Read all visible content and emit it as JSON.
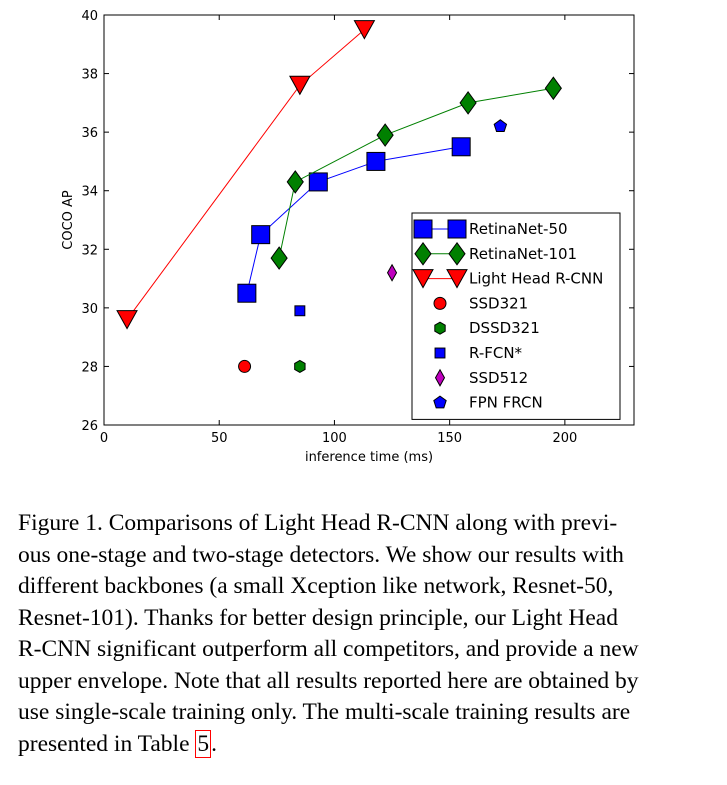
{
  "chart_data": {
    "type": "scatter",
    "title": "",
    "xlabel": "inference time (ms)",
    "ylabel": "COCO AP",
    "xlim": [
      0,
      230
    ],
    "ylim": [
      26,
      40
    ],
    "xticks": [
      0,
      50,
      100,
      150,
      200
    ],
    "yticks": [
      26,
      28,
      30,
      32,
      34,
      36,
      38,
      40
    ],
    "grid": false,
    "legend_placement": "lower-right",
    "series": [
      {
        "name": "RetinaNet-50",
        "marker": "square",
        "color": "#0000ff",
        "line": true,
        "size": "large",
        "points": [
          [
            62,
            30.5
          ],
          [
            68,
            32.5
          ],
          [
            93,
            34.3
          ],
          [
            118,
            35.0
          ],
          [
            155,
            35.5
          ]
        ]
      },
      {
        "name": "RetinaNet-101",
        "marker": "diamond",
        "color": "#008000",
        "line": true,
        "size": "large",
        "points": [
          [
            76,
            31.7
          ],
          [
            83,
            34.3
          ],
          [
            122,
            35.9
          ],
          [
            158,
            37.0
          ],
          [
            195,
            37.5
          ]
        ]
      },
      {
        "name": "Light Head R-CNN",
        "marker": "triangle-down",
        "color": "#ff0000",
        "line": true,
        "size": "large",
        "points": [
          [
            10,
            29.6
          ],
          [
            85,
            37.6
          ],
          [
            113,
            39.5
          ]
        ]
      },
      {
        "name": "SSD321",
        "marker": "circle",
        "color": "#ff0000",
        "line": false,
        "size": "small",
        "points": [
          [
            61,
            28.0
          ]
        ]
      },
      {
        "name": "DSSD321",
        "marker": "hexagon",
        "color": "#008000",
        "line": false,
        "size": "small",
        "points": [
          [
            85,
            28.0
          ]
        ]
      },
      {
        "name": "R-FCN*",
        "marker": "square",
        "color": "#0000ff",
        "line": false,
        "size": "small",
        "points": [
          [
            85,
            29.9
          ]
        ]
      },
      {
        "name": "SSD512",
        "marker": "thin-diamond",
        "color": "#bf00bf",
        "line": false,
        "size": "small",
        "points": [
          [
            125,
            31.2
          ]
        ]
      },
      {
        "name": "FPN FRCN",
        "marker": "pentagon",
        "color": "#0000ff",
        "line": false,
        "size": "small",
        "points": [
          [
            172,
            36.2
          ]
        ]
      }
    ]
  },
  "caption": {
    "lines": [
      "Figure 1. Comparisons of Light Head R-CNN along with previ-",
      "ous one-stage and two-stage detectors. We show our results with",
      "different backbones (a small Xception like network, Resnet-50,",
      "Resnet-101). Thanks for better design principle, our Light Head",
      "R-CNN significant outperform all competitors, and provide a new",
      "upper envelope. Note that all results reported here are obtained by",
      "use single-scale training only. The multi-scale training results are"
    ],
    "last_line_prefix": "presented in Table ",
    "table_ref": "5",
    "last_line_suffix": "."
  }
}
